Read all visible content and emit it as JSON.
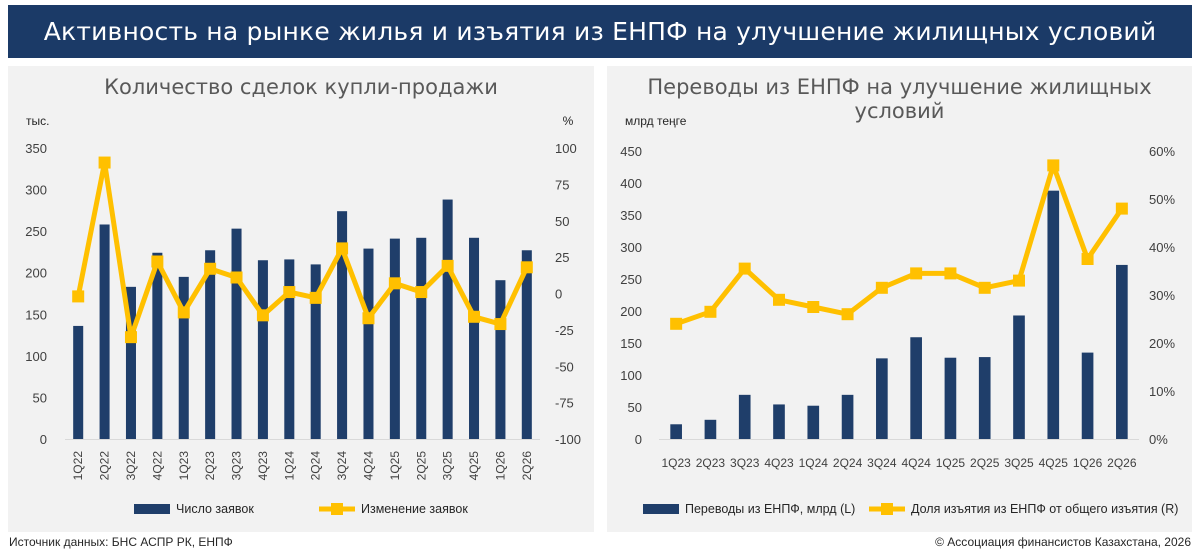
{
  "header": {
    "title": "Активность на рынке жилья и изъятия из ЕНПФ на улучшение жилищных условий"
  },
  "footer": {
    "source": "Источник данных: БНС АСПР РК, ЕНПФ",
    "copyright": "© Ассоциация финансистов Казахстана, 2026"
  },
  "chart_data": [
    {
      "type": "bar",
      "title": "Количество сделок купли-продажи",
      "ylabel_left": "тыс.",
      "ylabel_right": "%",
      "ylim_left": [
        0,
        350
      ],
      "yticks_left": [
        "0",
        "50",
        "100",
        "150",
        "200",
        "250",
        "300",
        "350"
      ],
      "ylim_right": [
        -100,
        100
      ],
      "yticks_right": [
        "-100",
        "-75",
        "-50",
        "-25",
        "0",
        "25",
        "50",
        "75",
        "100"
      ],
      "categories": [
        "1Q22",
        "2Q22",
        "3Q22",
        "4Q22",
        "1Q23",
        "2Q23",
        "3Q23",
        "4Q23",
        "1Q24",
        "2Q24",
        "3Q24",
        "4Q24",
        "1Q25",
        "2Q25",
        "3Q25",
        "4Q25",
        "1Q26",
        "2Q26"
      ],
      "legend_position": "bottom",
      "grid": false,
      "series": [
        {
          "name": "Число заявок",
          "type": "bar",
          "axis": "left",
          "color": "#1f3e6a",
          "values": [
            136,
            258,
            183,
            224,
            195,
            227,
            253,
            215,
            216,
            210,
            274,
            229,
            241,
            242,
            288,
            242,
            191,
            227
          ]
        },
        {
          "name": "Изменение заявок",
          "type": "line",
          "axis": "right",
          "color": "#ffc000",
          "values": [
            -2,
            90,
            -30,
            22,
            -13,
            17,
            11,
            -15,
            1,
            -3,
            31,
            -17,
            7,
            1,
            19,
            -16,
            -21,
            18
          ]
        }
      ]
    },
    {
      "type": "bar",
      "title": "Переводы из ЕНПФ на улучшение жилищных условий",
      "ylabel_left": "млрд теңге",
      "ylim_left": [
        0,
        450
      ],
      "yticks_left": [
        "0",
        "50",
        "100",
        "150",
        "200",
        "250",
        "300",
        "350",
        "400",
        "450"
      ],
      "ylim_right": [
        0,
        60
      ],
      "yticks_right": [
        "0%",
        "10%",
        "20%",
        "30%",
        "40%",
        "50%",
        "60%"
      ],
      "categories": [
        "1Q23",
        "2Q23",
        "3Q23",
        "4Q23",
        "1Q24",
        "2Q24",
        "3Q24",
        "4Q24",
        "1Q25",
        "2Q25",
        "3Q25",
        "4Q25",
        "1Q26",
        "2Q26"
      ],
      "legend_position": "bottom",
      "grid": false,
      "series": [
        {
          "name": "Переводы из ЕНПФ, млрд (L)",
          "type": "bar",
          "axis": "left",
          "color": "#1f3e6a",
          "values": [
            23,
            30,
            69,
            54,
            52,
            69,
            126,
            159,
            127,
            128,
            193,
            388,
            135,
            272
          ]
        },
        {
          "name": "Доля изъятия из ЕНПФ от общего изъятия (R)",
          "type": "line",
          "axis": "right",
          "color": "#ffc000",
          "values": [
            24,
            26.5,
            35.5,
            29,
            27.5,
            26,
            31.5,
            34.5,
            34.5,
            31.5,
            33,
            57,
            37.5,
            48
          ]
        }
      ]
    }
  ]
}
